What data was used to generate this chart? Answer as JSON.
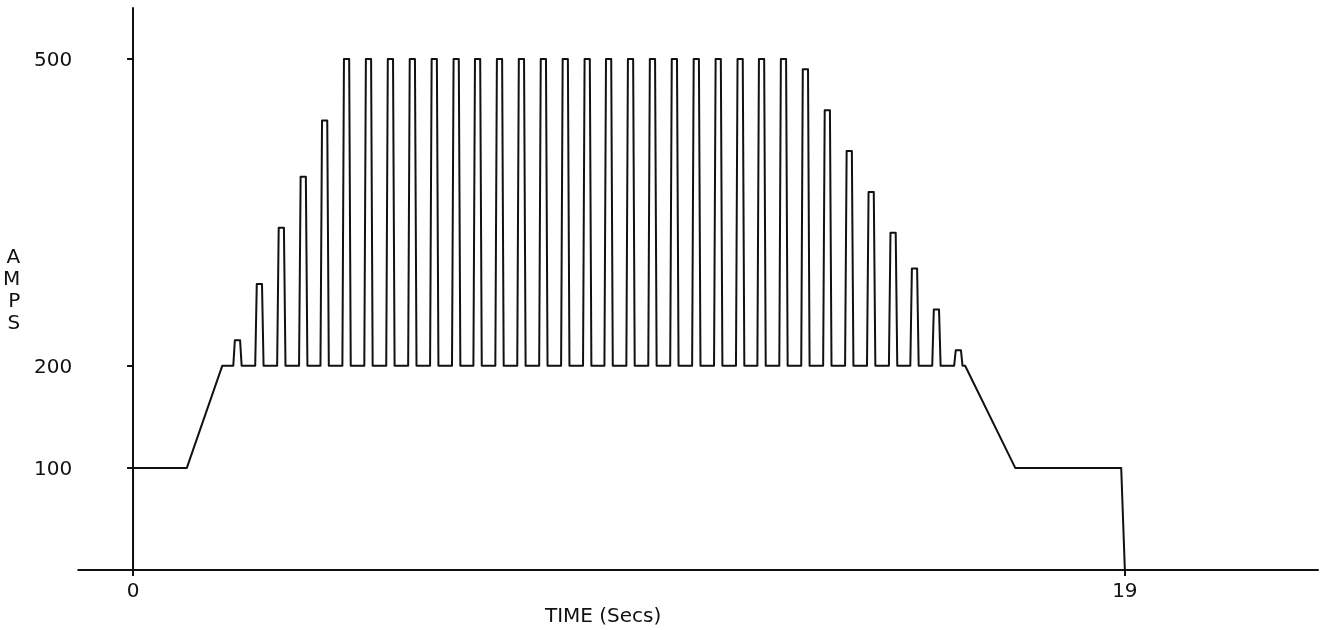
{
  "chart_data": {
    "type": "line",
    "xlabel": "TIME (Secs)",
    "ylabel": "AMPS",
    "xlim": [
      -1.05,
      22.7
    ],
    "xticks": [
      0,
      19
    ],
    "ylim": [
      0,
      550
    ],
    "yticks": [
      100,
      200,
      500
    ],
    "marker": "none",
    "line_style": "solid",
    "series": [
      {
        "color": "#111111",
        "x": [
          0,
          0,
          1.03,
          1.71,
          1.92,
          1.95,
          2.05,
          2.08,
          2.34,
          2.37,
          2.47,
          2.5,
          2.76,
          2.79,
          2.89,
          2.92,
          3.18,
          3.21,
          3.31,
          3.34,
          3.59,
          3.62,
          3.72,
          3.75,
          4.01,
          4.04,
          4.14,
          4.17,
          4.43,
          4.46,
          4.56,
          4.59,
          4.85,
          4.88,
          4.98,
          5.01,
          5.27,
          5.3,
          5.4,
          5.43,
          5.69,
          5.72,
          5.82,
          5.85,
          6.11,
          6.14,
          6.24,
          6.27,
          6.52,
          6.55,
          6.65,
          6.68,
          6.94,
          6.97,
          7.07,
          7.1,
          7.36,
          7.39,
          7.49,
          7.52,
          7.78,
          7.81,
          7.91,
          7.94,
          8.2,
          8.23,
          8.33,
          8.36,
          8.62,
          8.65,
          8.75,
          8.78,
          9.03,
          9.06,
          9.16,
          9.19,
          9.45,
          9.48,
          9.58,
          9.61,
          9.87,
          9.9,
          10.0,
          10.03,
          10.29,
          10.32,
          10.42,
          10.45,
          10.71,
          10.74,
          10.84,
          10.87,
          11.13,
          11.16,
          11.26,
          11.29,
          11.55,
          11.58,
          11.68,
          11.71,
          11.96,
          11.99,
          12.09,
          12.12,
          12.38,
          12.41,
          12.51,
          12.54,
          12.8,
          12.83,
          12.93,
          12.96,
          13.22,
          13.25,
          13.35,
          13.38,
          13.64,
          13.67,
          13.77,
          13.8,
          14.06,
          14.09,
          14.19,
          14.22,
          14.48,
          14.51,
          14.61,
          14.64,
          14.89,
          14.92,
          15.02,
          15.05,
          15.31,
          15.34,
          15.44,
          15.47,
          15.73,
          15.76,
          15.86,
          15.89,
          15.94,
          16.9,
          18.93,
          19.0
        ],
        "values": [
          0,
          100,
          100,
          200,
          200,
          225,
          225,
          200,
          200,
          280,
          280,
          200,
          200,
          335,
          335,
          200,
          200,
          385,
          385,
          200,
          200,
          440,
          440,
          200,
          200,
          500,
          500,
          200,
          200,
          500,
          500,
          200,
          200,
          500,
          500,
          200,
          200,
          500,
          500,
          200,
          200,
          500,
          500,
          200,
          200,
          500,
          500,
          200,
          200,
          500,
          500,
          200,
          200,
          500,
          500,
          200,
          200,
          500,
          500,
          200,
          200,
          500,
          500,
          200,
          200,
          500,
          500,
          200,
          200,
          500,
          500,
          200,
          200,
          500,
          500,
          200,
          200,
          500,
          500,
          200,
          200,
          500,
          500,
          200,
          200,
          500,
          500,
          200,
          200,
          500,
          500,
          200,
          200,
          500,
          500,
          200,
          200,
          500,
          500,
          200,
          200,
          500,
          500,
          200,
          200,
          500,
          500,
          200,
          200,
          490,
          490,
          200,
          200,
          450,
          450,
          200,
          200,
          410,
          410,
          200,
          200,
          370,
          370,
          200,
          200,
          330,
          330,
          200,
          200,
          295,
          295,
          200,
          200,
          255,
          255,
          200,
          200,
          215,
          215,
          200,
          200,
          100,
          100,
          0
        ]
      }
    ]
  }
}
